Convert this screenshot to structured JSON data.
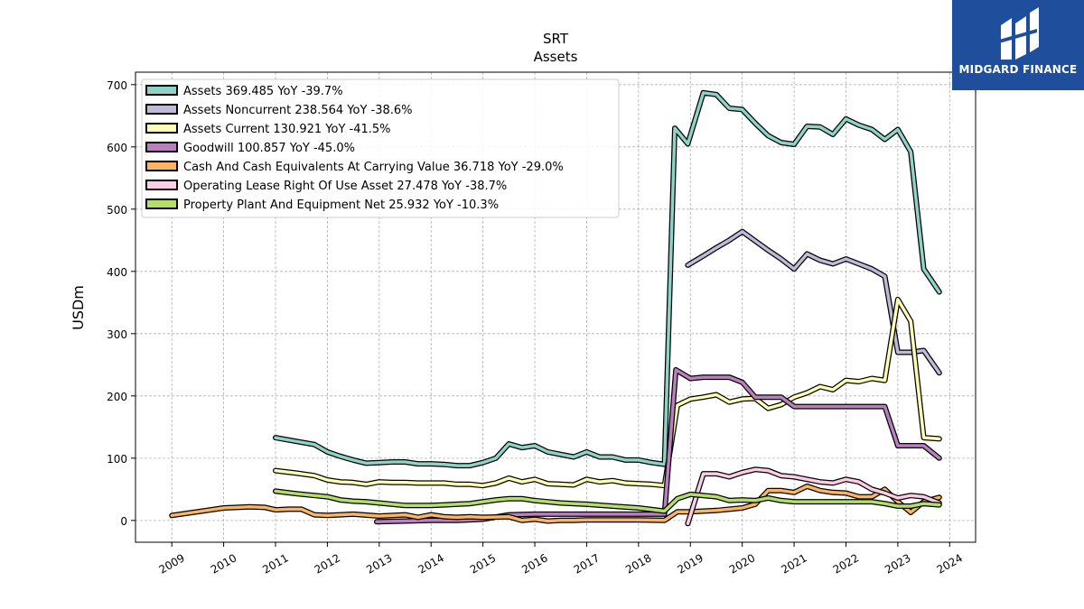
{
  "chart_data": {
    "type": "line",
    "title": "SRT",
    "subtitle": "Assets",
    "ylabel": "USDm",
    "xlabel": "",
    "xlim": [
      2008.3,
      2024.5
    ],
    "ylim": [
      -35,
      720
    ],
    "yticks": [
      0,
      100,
      200,
      300,
      400,
      500,
      600,
      700
    ],
    "xticks": [
      2009,
      2010,
      2011,
      2012,
      2013,
      2014,
      2015,
      2016,
      2017,
      2018,
      2019,
      2020,
      2021,
      2022,
      2023,
      2024
    ],
    "grid": true,
    "legend_position": "top-left",
    "series": [
      {
        "name": "Assets  369.485 YoY -39.7%",
        "color": "#8dd3c7",
        "points": [
          [
            2011.0,
            133
          ],
          [
            2011.4,
            127
          ],
          [
            2011.75,
            122
          ],
          [
            2012.0,
            110
          ],
          [
            2012.25,
            103
          ],
          [
            2012.5,
            97
          ],
          [
            2012.75,
            92
          ],
          [
            2013.0,
            93
          ],
          [
            2013.25,
            94
          ],
          [
            2013.5,
            94
          ],
          [
            2013.75,
            91
          ],
          [
            2014.0,
            91
          ],
          [
            2014.25,
            90
          ],
          [
            2014.5,
            88
          ],
          [
            2014.75,
            88
          ],
          [
            2015.0,
            93
          ],
          [
            2015.25,
            100
          ],
          [
            2015.5,
            123
          ],
          [
            2015.75,
            117
          ],
          [
            2016.0,
            120
          ],
          [
            2016.25,
            110
          ],
          [
            2016.5,
            106
          ],
          [
            2016.75,
            102
          ],
          [
            2017.0,
            110
          ],
          [
            2017.25,
            102
          ],
          [
            2017.5,
            102
          ],
          [
            2017.75,
            97
          ],
          [
            2018.0,
            97
          ],
          [
            2018.25,
            93
          ],
          [
            2018.5,
            90
          ],
          [
            2018.7,
            630
          ],
          [
            2018.95,
            605
          ],
          [
            2019.25,
            687
          ],
          [
            2019.5,
            684
          ],
          [
            2019.75,
            662
          ],
          [
            2020.0,
            660
          ],
          [
            2020.25,
            638
          ],
          [
            2020.5,
            618
          ],
          [
            2020.75,
            607
          ],
          [
            2021.0,
            604
          ],
          [
            2021.25,
            633
          ],
          [
            2021.5,
            632
          ],
          [
            2021.75,
            620
          ],
          [
            2022.0,
            645
          ],
          [
            2022.25,
            635
          ],
          [
            2022.5,
            628
          ],
          [
            2022.75,
            612
          ],
          [
            2023.0,
            628
          ],
          [
            2023.25,
            592
          ],
          [
            2023.5,
            404
          ],
          [
            2023.8,
            367
          ]
        ]
      },
      {
        "name": "Assets Noncurrent  238.564 YoY -38.6%",
        "color": "#bebada",
        "points": [
          [
            2018.95,
            410
          ],
          [
            2019.25,
            425
          ],
          [
            2019.5,
            438
          ],
          [
            2019.75,
            450
          ],
          [
            2020.0,
            464
          ],
          [
            2020.25,
            449
          ],
          [
            2020.5,
            434
          ],
          [
            2020.75,
            420
          ],
          [
            2021.0,
            404
          ],
          [
            2021.25,
            428
          ],
          [
            2021.5,
            418
          ],
          [
            2021.75,
            412
          ],
          [
            2022.0,
            420
          ],
          [
            2022.25,
            412
          ],
          [
            2022.5,
            404
          ],
          [
            2022.75,
            392
          ],
          [
            2023.0,
            270
          ],
          [
            2023.25,
            270
          ],
          [
            2023.5,
            273
          ],
          [
            2023.8,
            237
          ]
        ]
      },
      {
        "name": "Assets Current  130.921 YoY -41.5%",
        "color": "#ffffb3",
        "points": [
          [
            2011.0,
            80
          ],
          [
            2011.4,
            76
          ],
          [
            2011.75,
            72
          ],
          [
            2012.0,
            65
          ],
          [
            2012.25,
            62
          ],
          [
            2012.5,
            61
          ],
          [
            2012.75,
            58
          ],
          [
            2013.0,
            62
          ],
          [
            2013.25,
            61
          ],
          [
            2013.5,
            61
          ],
          [
            2013.75,
            60
          ],
          [
            2014.0,
            60
          ],
          [
            2014.25,
            60
          ],
          [
            2014.5,
            58
          ],
          [
            2014.75,
            58
          ],
          [
            2015.0,
            56
          ],
          [
            2015.25,
            60
          ],
          [
            2015.5,
            68
          ],
          [
            2015.75,
            62
          ],
          [
            2016.0,
            66
          ],
          [
            2016.25,
            59
          ],
          [
            2016.5,
            58
          ],
          [
            2016.75,
            57
          ],
          [
            2017.0,
            66
          ],
          [
            2017.25,
            62
          ],
          [
            2017.5,
            64
          ],
          [
            2017.75,
            60
          ],
          [
            2018.0,
            59
          ],
          [
            2018.25,
            58
          ],
          [
            2018.5,
            56
          ],
          [
            2018.75,
            185
          ],
          [
            2019.0,
            195
          ],
          [
            2019.25,
            198
          ],
          [
            2019.5,
            202
          ],
          [
            2019.75,
            190
          ],
          [
            2020.0,
            195
          ],
          [
            2020.25,
            196
          ],
          [
            2020.5,
            180
          ],
          [
            2020.75,
            186
          ],
          [
            2021.0,
            198
          ],
          [
            2021.25,
            205
          ],
          [
            2021.5,
            215
          ],
          [
            2021.75,
            210
          ],
          [
            2022.0,
            225
          ],
          [
            2022.25,
            223
          ],
          [
            2022.5,
            228
          ],
          [
            2022.75,
            225
          ],
          [
            2023.0,
            355
          ],
          [
            2023.25,
            320
          ],
          [
            2023.5,
            133
          ],
          [
            2023.8,
            131
          ]
        ]
      },
      {
        "name": "Goodwill  100.857 YoY -45.0%",
        "color": "#b97fbe",
        "points": [
          [
            2012.95,
            -2
          ],
          [
            2013.5,
            -1
          ],
          [
            2014.0,
            0
          ],
          [
            2014.5,
            0
          ],
          [
            2015.0,
            2
          ],
          [
            2015.5,
            9
          ],
          [
            2016.0,
            10
          ],
          [
            2016.5,
            10
          ],
          [
            2017.0,
            10
          ],
          [
            2017.5,
            10
          ],
          [
            2018.0,
            10
          ],
          [
            2018.5,
            10
          ],
          [
            2018.72,
            242
          ],
          [
            2019.0,
            228
          ],
          [
            2019.25,
            230
          ],
          [
            2019.5,
            230
          ],
          [
            2019.75,
            230
          ],
          [
            2020.0,
            222
          ],
          [
            2020.25,
            198
          ],
          [
            2020.5,
            198
          ],
          [
            2020.75,
            198
          ],
          [
            2021.0,
            183
          ],
          [
            2021.5,
            183
          ],
          [
            2022.0,
            183
          ],
          [
            2022.5,
            183
          ],
          [
            2022.75,
            183
          ],
          [
            2023.0,
            120
          ],
          [
            2023.25,
            120
          ],
          [
            2023.5,
            120
          ],
          [
            2023.8,
            100
          ]
        ]
      },
      {
        "name": "Cash And Cash Equivalents At Carrying Value  36.718 YoY -29.0%",
        "color": "#fdb462",
        "points": [
          [
            2009.0,
            8
          ],
          [
            2009.5,
            14
          ],
          [
            2010.0,
            20
          ],
          [
            2010.5,
            22
          ],
          [
            2010.8,
            21
          ],
          [
            2011.0,
            17
          ],
          [
            2011.25,
            18
          ],
          [
            2011.5,
            18
          ],
          [
            2011.75,
            9
          ],
          [
            2012.0,
            8
          ],
          [
            2012.5,
            10
          ],
          [
            2013.0,
            7
          ],
          [
            2013.5,
            9
          ],
          [
            2013.75,
            5
          ],
          [
            2014.0,
            9
          ],
          [
            2014.25,
            6
          ],
          [
            2014.5,
            5
          ],
          [
            2014.75,
            6
          ],
          [
            2015.0,
            5
          ],
          [
            2015.5,
            6
          ],
          [
            2015.75,
            0
          ],
          [
            2016.0,
            2
          ],
          [
            2016.25,
            -1
          ],
          [
            2016.5,
            0
          ],
          [
            2016.75,
            0
          ],
          [
            2017.0,
            1
          ],
          [
            2017.5,
            1
          ],
          [
            2018.0,
            1
          ],
          [
            2018.5,
            0
          ],
          [
            2018.75,
            14
          ],
          [
            2019.0,
            14
          ],
          [
            2019.5,
            16
          ],
          [
            2020.0,
            20
          ],
          [
            2020.25,
            26
          ],
          [
            2020.5,
            48
          ],
          [
            2020.75,
            48
          ],
          [
            2021.0,
            45
          ],
          [
            2021.25,
            55
          ],
          [
            2021.5,
            48
          ],
          [
            2021.75,
            45
          ],
          [
            2022.0,
            44
          ],
          [
            2022.25,
            38
          ],
          [
            2022.5,
            38
          ],
          [
            2022.75,
            50
          ],
          [
            2023.0,
            30
          ],
          [
            2023.25,
            13
          ],
          [
            2023.5,
            30
          ],
          [
            2023.8,
            37
          ]
        ]
      },
      {
        "name": "Operating Lease Right Of Use Asset  27.478 YoY -38.7%",
        "color": "#fccde5",
        "points": [
          [
            2018.95,
            -5
          ],
          [
            2019.25,
            75
          ],
          [
            2019.5,
            75
          ],
          [
            2019.75,
            70
          ],
          [
            2020.0,
            77
          ],
          [
            2020.25,
            82
          ],
          [
            2020.5,
            80
          ],
          [
            2020.75,
            72
          ],
          [
            2021.0,
            70
          ],
          [
            2021.25,
            66
          ],
          [
            2021.5,
            62
          ],
          [
            2021.75,
            60
          ],
          [
            2022.0,
            66
          ],
          [
            2022.25,
            62
          ],
          [
            2022.5,
            50
          ],
          [
            2022.75,
            44
          ],
          [
            2023.0,
            36
          ],
          [
            2023.25,
            40
          ],
          [
            2023.5,
            38
          ],
          [
            2023.8,
            28
          ]
        ]
      },
      {
        "name": "Property Plant And Equipment Net  25.932 YoY -10.3%",
        "color": "#b3de69",
        "points": [
          [
            2011.0,
            47
          ],
          [
            2011.4,
            43
          ],
          [
            2011.75,
            40
          ],
          [
            2012.0,
            38
          ],
          [
            2012.25,
            33
          ],
          [
            2012.5,
            31
          ],
          [
            2012.75,
            30
          ],
          [
            2013.0,
            28
          ],
          [
            2013.5,
            24
          ],
          [
            2014.0,
            24
          ],
          [
            2014.25,
            25
          ],
          [
            2014.5,
            26
          ],
          [
            2014.75,
            27
          ],
          [
            2015.0,
            30
          ],
          [
            2015.25,
            33
          ],
          [
            2015.5,
            35
          ],
          [
            2015.75,
            35
          ],
          [
            2016.0,
            32
          ],
          [
            2016.5,
            28
          ],
          [
            2017.0,
            26
          ],
          [
            2017.5,
            23
          ],
          [
            2018.0,
            20
          ],
          [
            2018.5,
            15
          ],
          [
            2018.75,
            35
          ],
          [
            2019.0,
            42
          ],
          [
            2019.5,
            38
          ],
          [
            2019.75,
            32
          ],
          [
            2020.0,
            33
          ],
          [
            2020.25,
            32
          ],
          [
            2020.5,
            36
          ],
          [
            2020.75,
            32
          ],
          [
            2021.0,
            30
          ],
          [
            2021.5,
            30
          ],
          [
            2022.0,
            30
          ],
          [
            2022.5,
            30
          ],
          [
            2022.75,
            27
          ],
          [
            2023.0,
            23
          ],
          [
            2023.25,
            23
          ],
          [
            2023.5,
            27
          ],
          [
            2023.8,
            25
          ]
        ]
      }
    ]
  },
  "logo": {
    "text": "MIDGARD FINANCE"
  }
}
